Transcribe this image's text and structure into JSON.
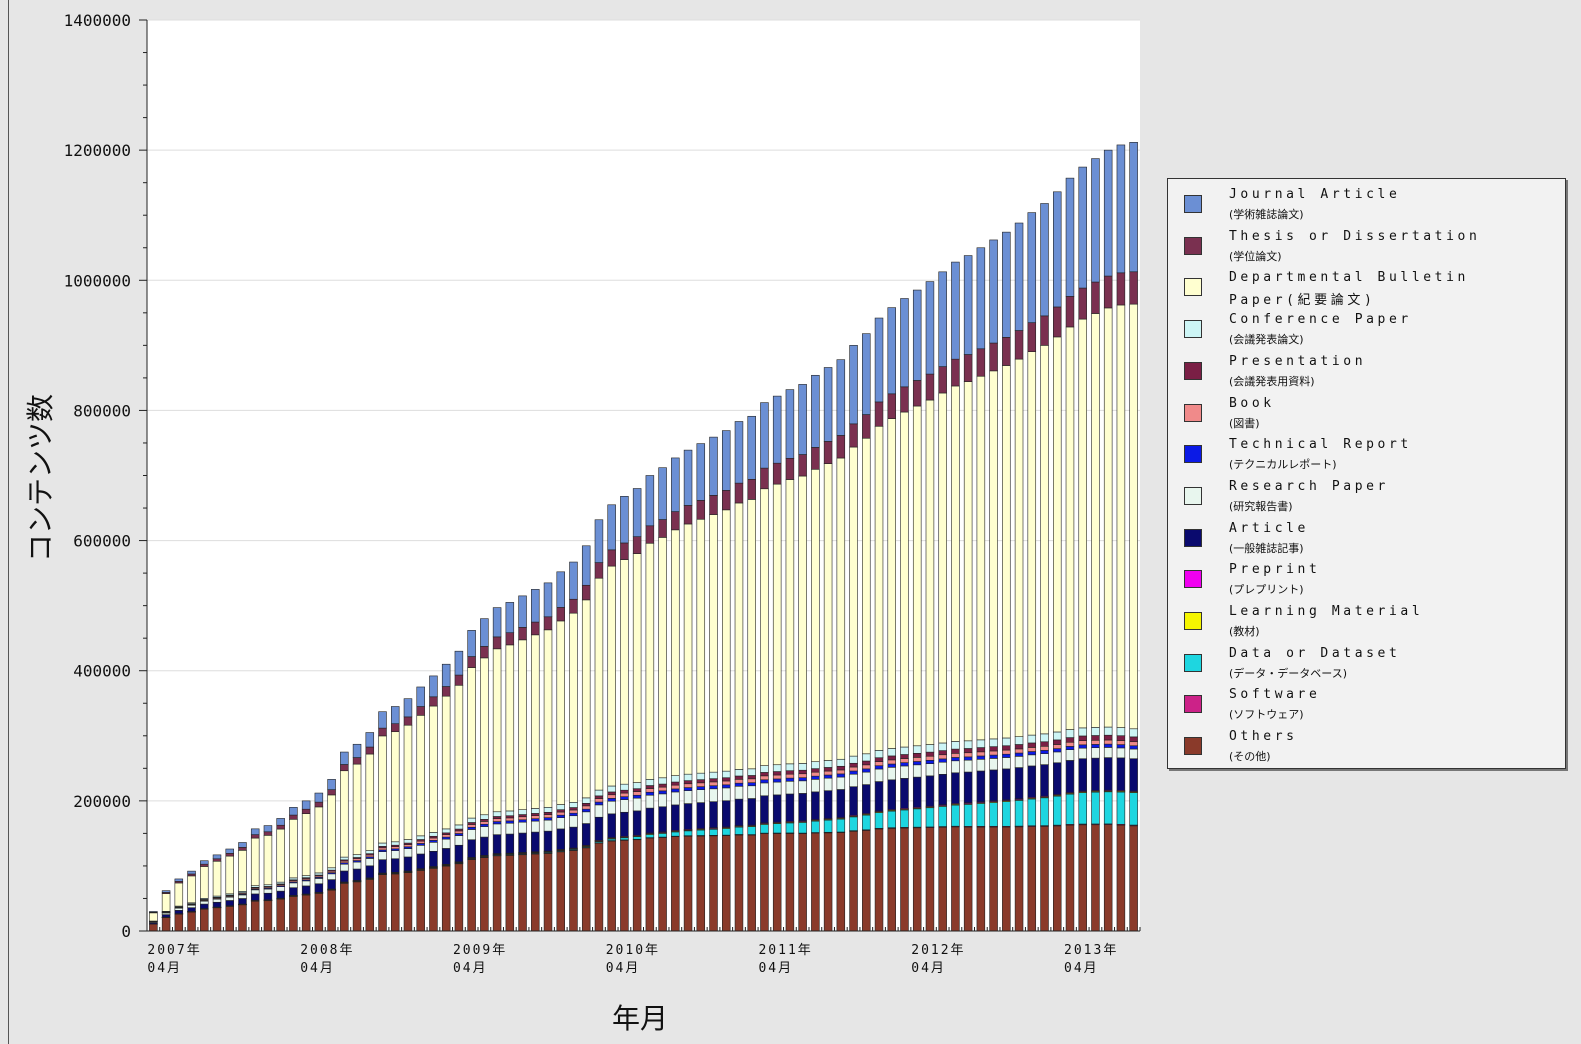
{
  "chart_data": {
    "type": "bar",
    "stacked": true,
    "xlabel": "年月",
    "ylabel": "コンテンツ数",
    "ylim": [
      0,
      1400000
    ],
    "yticks": [
      0,
      200000,
      400000,
      600000,
      800000,
      1000000,
      1200000,
      1400000
    ],
    "ytick_labels": [
      "0",
      "200000",
      "400000",
      "600000",
      "800000",
      "1000000",
      "1200000",
      "1400000"
    ],
    "xtick_labels": [
      {
        "year": "2007年",
        "month": "04月",
        "index": 0
      },
      {
        "year": "2008年",
        "month": "04月",
        "index": 12
      },
      {
        "year": "2009年",
        "month": "04月",
        "index": 24
      },
      {
        "year": "2010年",
        "month": "04月",
        "index": 36
      },
      {
        "year": "2011年",
        "month": "04月",
        "index": 48
      },
      {
        "year": "2012年",
        "month": "04月",
        "index": 60
      },
      {
        "year": "2013年",
        "month": "04月",
        "index": 72
      }
    ],
    "first_period": "2007-04",
    "last_period": "2013-09",
    "grid": true,
    "legend_position": "right",
    "totals": [
      30000,
      62000,
      80000,
      92000,
      108000,
      117000,
      126000,
      136000,
      157000,
      162000,
      173000,
      190000,
      200000,
      212000,
      233000,
      275000,
      287000,
      305000,
      337000,
      345000,
      357000,
      375000,
      392000,
      410000,
      430000,
      462000,
      480000,
      497000,
      505000,
      515000,
      525000,
      535000,
      552000,
      567000,
      592000,
      632000,
      655000,
      668000,
      680000,
      700000,
      712000,
      727000,
      739000,
      749000,
      759000,
      769000,
      783000,
      791000,
      812000,
      822000,
      832000,
      840000,
      854000,
      866000,
      878000,
      900000,
      918000,
      942000,
      958000,
      972000,
      985000,
      998000,
      1013000,
      1028000,
      1038000,
      1050000,
      1062000,
      1074000,
      1088000,
      1104000,
      1118000,
      1136000,
      1157000,
      1174000,
      1187000,
      1200000,
      1208000,
      1212000
    ],
    "series": [
      {
        "name": "Journal Article",
        "name_ja": "(学術雑誌論文)",
        "color": "#6b8fd4",
        "end_share": 0.16
      },
      {
        "name": "Thesis or Dissertation",
        "name_ja": "(学位論文)",
        "color": "#7a3050",
        "end_share": 0.04
      },
      {
        "name": "Departmental Bulletin Paper",
        "name_ja": "(紀要論文)",
        "color": "#ffffd0",
        "end_share": 0.525
      },
      {
        "name": "Conference Paper",
        "name_ja": "(会議発表論文)",
        "color": "#cdf5f5",
        "end_share": 0.01
      },
      {
        "name": "Presentation",
        "name_ja": "(会議発表用資料)",
        "color": "#7a1f45",
        "end_share": 0.006
      },
      {
        "name": "Book",
        "name_ja": "(図書)",
        "color": "#f08a8a",
        "end_share": 0.005
      },
      {
        "name": "Technical Report",
        "name_ja": "(テクニカルレポート)",
        "color": "#0b1ae6",
        "end_share": 0.004
      },
      {
        "name": "Research Paper",
        "name_ja": "(研究報告書)",
        "color": "#e8f6ee",
        "end_share": 0.012
      },
      {
        "name": "Article",
        "name_ja": "(一般雑誌記事)",
        "color": "#0a0a6e",
        "end_share": 0.04
      },
      {
        "name": "Preprint",
        "name_ja": "(プレプリント)",
        "color": "#f000f0",
        "end_share": 0.001
      },
      {
        "name": "Learning Material",
        "name_ja": "(教材)",
        "color": "#f5f500",
        "end_share": 0.001
      },
      {
        "name": "Data or Dataset",
        "name_ja": "(データ・データベース)",
        "color": "#1ed6e0",
        "end_share": 0.04
      },
      {
        "name": "Software",
        "name_ja": "(ソフトウェア)",
        "color": "#cc2288",
        "end_share": 0.001
      },
      {
        "name": "Others",
        "name_ja": "(その他)",
        "color": "#8a3a2a",
        "end_share": 0.13
      }
    ]
  },
  "legend": {
    "items": [
      {
        "en": "Journal Article",
        "ja": "(学術雑誌論文)",
        "color": "#6b8fd4"
      },
      {
        "en": "Thesis or Dissertation",
        "ja": "(学位論文)",
        "color": "#7a3050"
      },
      {
        "en": "Departmental Bulletin",
        "en2": "Paper(紀要論文)",
        "ja": "",
        "color": "#ffffd0"
      },
      {
        "en": "Conference Paper",
        "ja": "(会議発表論文)",
        "color": "#cdf5f5"
      },
      {
        "en": "Presentation",
        "ja": "(会議発表用資料)",
        "color": "#7a1f45"
      },
      {
        "en": "Book",
        "ja": "(図書)",
        "color": "#f08a8a"
      },
      {
        "en": "Technical Report",
        "ja": "(テクニカルレポート)",
        "color": "#0b1ae6"
      },
      {
        "en": "Research Paper",
        "ja": "(研究報告書)",
        "color": "#e8f6ee"
      },
      {
        "en": "Article",
        "ja": "(一般雑誌記事)",
        "color": "#0a0a6e"
      },
      {
        "en": "Preprint",
        "ja": "(プレプリント)",
        "color": "#f000f0"
      },
      {
        "en": "Learning Material",
        "ja": "(教材)",
        "color": "#f5f500"
      },
      {
        "en": "Data or Dataset",
        "ja": "(データ・データベース)",
        "color": "#1ed6e0"
      },
      {
        "en": "Software",
        "ja": "(ソフトウェア)",
        "color": "#cc2288"
      },
      {
        "en": "Others",
        "ja": "(その他)",
        "color": "#8a3a2a"
      }
    ]
  }
}
